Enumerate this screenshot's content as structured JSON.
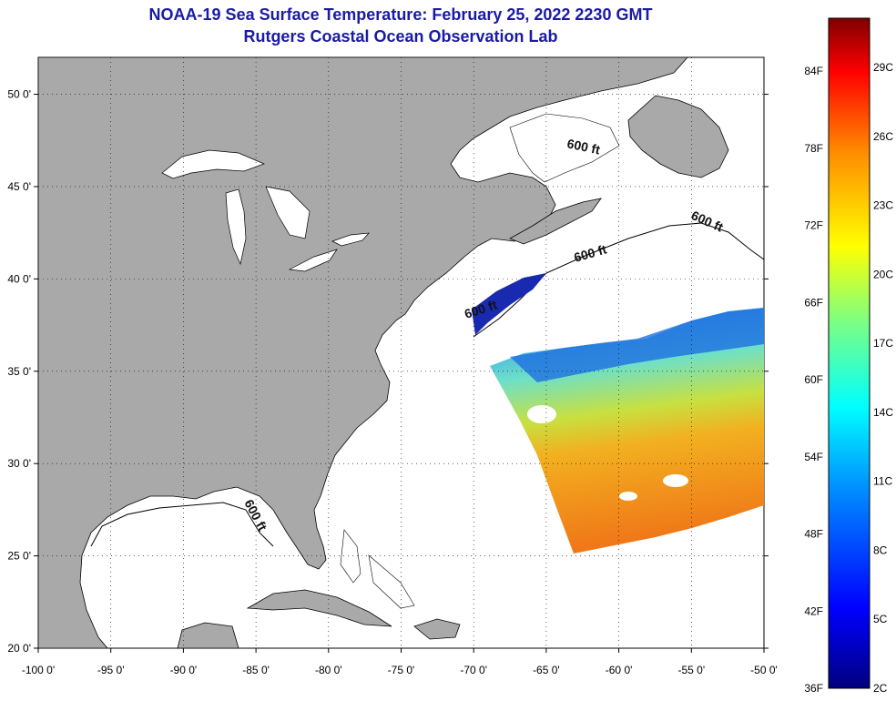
{
  "title": {
    "line1": "NOAA-19 Sea Surface Temperature:  February 25, 2022 2230 GMT",
    "line2": "Rutgers Coastal Ocean Observation Lab"
  },
  "map": {
    "lon_range": [
      -100,
      -50
    ],
    "lat_range": [
      20,
      52
    ],
    "x_ticks": [
      "-100 0'",
      "-95 0'",
      "-90 0'",
      "-85 0'",
      "-80 0'",
      "-75 0'",
      "-70 0'",
      "-65 0'",
      "-60 0'",
      "-55 0'",
      "-50 0'"
    ],
    "y_ticks": [
      "50 0'",
      "45 0'",
      "40 0'",
      "35 0'",
      "30 0'",
      "25 0'",
      "20 0'"
    ],
    "contour_labels": [
      "600 ft",
      "600 ft",
      "600 ft",
      "600 ft",
      "600 ft"
    ],
    "land_color": "#a9a9a9",
    "ocean_color": "#ffffff"
  },
  "colorbar": {
    "f_labels": [
      "84F",
      "78F",
      "72F",
      "66F",
      "60F",
      "54F",
      "48F",
      "42F",
      "36F"
    ],
    "c_labels": [
      "29C",
      "26C",
      "23C",
      "20C",
      "17C",
      "14C",
      "11C",
      "8C",
      "5C",
      "2C"
    ]
  }
}
